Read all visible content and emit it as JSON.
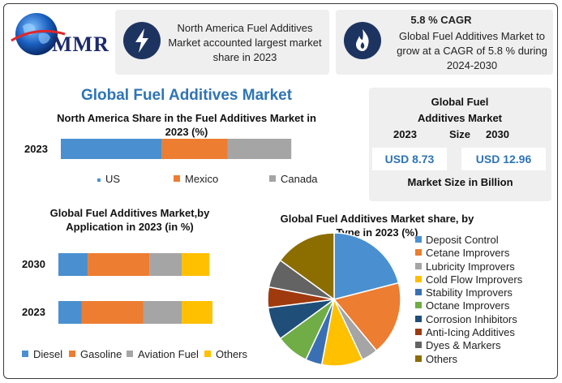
{
  "logo": {
    "text": "MMR"
  },
  "cards": [
    {
      "icon": "lightning-icon",
      "text": "North America Fuel Additives Market accounted largest market share in 2023"
    },
    {
      "icon": "flame-icon",
      "title": "5.8 % CAGR",
      "text": "Global Fuel Additives Market to grow at a CAGR of 5.8 % during 2024-2030"
    }
  ],
  "main_title": "Global Fuel Additives Market",
  "market_size": {
    "title": "Global Fuel Additives Market Size",
    "year_a": "2023",
    "year_b": "2030",
    "value_a": "USD 8.73",
    "value_b": "USD 12.96",
    "footer": "Market Size in Billion"
  },
  "colors": {
    "blue": "#4a90d0",
    "orange": "#ed7d31",
    "gray": "#a5a5a5",
    "yellow": "#ffc000",
    "navy": "#1d3461"
  },
  "chart_data": [
    {
      "type": "bar",
      "orientation": "horizontal-stacked",
      "title": "North America Share in the Fuel Additives Market in 2023 (%)",
      "categories": [
        "2023"
      ],
      "series": [
        {
          "name": "US",
          "values": [
            43
          ],
          "color": "#4a90d0"
        },
        {
          "name": "Mexico",
          "values": [
            28
          ],
          "color": "#ed7d31"
        },
        {
          "name": "Canada",
          "values": [
            27
          ],
          "color": "#a5a5a5"
        }
      ],
      "legend": "bottom"
    },
    {
      "type": "bar",
      "orientation": "horizontal-stacked",
      "title": "Global Fuel Additives Market,by Application in 2023 (in %)",
      "categories": [
        "2030",
        "2023"
      ],
      "series": [
        {
          "name": "Diesel",
          "values": [
            19,
            15
          ],
          "color": "#4a90d0"
        },
        {
          "name": "Gasoline",
          "values": [
            40,
            40
          ],
          "color": "#ed7d31"
        },
        {
          "name": "Aviation Fuel",
          "values": [
            21,
            25
          ],
          "color": "#a5a5a5"
        },
        {
          "name": "Others",
          "values": [
            18,
            20
          ],
          "color": "#ffc000"
        }
      ],
      "legend": "bottom"
    },
    {
      "type": "pie",
      "title": "Global Fuel Additives Market share, by Type in 2023  (%)",
      "series": [
        {
          "name": "Deposit Control",
          "value": 21,
          "color": "#4a90d0"
        },
        {
          "name": "Cetane Improvers",
          "value": 18,
          "color": "#ed7d31"
        },
        {
          "name": "Lubricity Improvers",
          "value": 4,
          "color": "#a5a5a5"
        },
        {
          "name": "Cold Flow Improvers",
          "value": 10,
          "color": "#ffc000"
        },
        {
          "name": "Stability Improvers",
          "value": 4,
          "color": "#3b6fb3"
        },
        {
          "name": "Octane Improvers",
          "value": 8,
          "color": "#70ad47"
        },
        {
          "name": "Corrosion Inhibitors",
          "value": 8,
          "color": "#1f4e79"
        },
        {
          "name": "Anti-Icing Additives",
          "value": 5,
          "color": "#9e3a0e"
        },
        {
          "name": "Dyes & Markers",
          "value": 7,
          "color": "#636363"
        },
        {
          "name": "Others",
          "value": 15,
          "color": "#8c6d00"
        }
      ],
      "legend": "right"
    }
  ]
}
